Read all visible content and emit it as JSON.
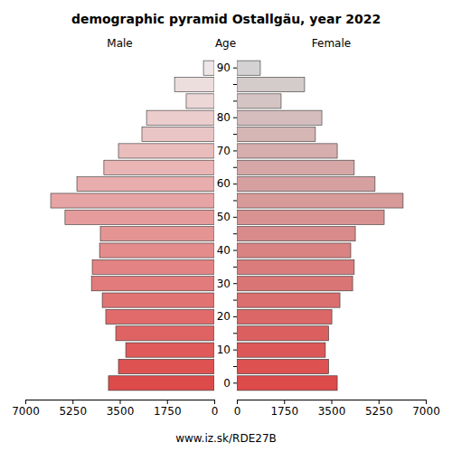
{
  "chart_data": {
    "type": "pyramid",
    "orientation": "horizontal",
    "title": "demographic pyramid Ostallgäu, year 2022",
    "y_label": "Age",
    "caption": "www.iz.sk/RDE27B",
    "categories": [
      "0",
      null,
      "10",
      null,
      "20",
      null,
      "30",
      null,
      "40",
      null,
      "50",
      null,
      "60",
      null,
      "70",
      null,
      "80",
      null,
      null,
      "90"
    ],
    "xlim": [
      0,
      7000
    ],
    "xticks": [
      0,
      1750,
      3500,
      5250,
      7000
    ],
    "series": [
      {
        "name": "Male",
        "values": [
          3920,
          3550,
          3280,
          3650,
          4020,
          4150,
          4550,
          4520,
          4250,
          4220,
          5530,
          6060,
          5090,
          4090,
          3550,
          2680,
          2510,
          1040,
          1470,
          400
        ],
        "colors": [
          "#dd4a4a",
          "#de5252",
          "#df5a5a",
          "#e06363",
          "#e16b6b",
          "#e17373",
          "#e27b7b",
          "#e38383",
          "#e48c8c",
          "#e59494",
          "#e69c9c",
          "#e7a4a4",
          "#e8adad",
          "#e9b5b5",
          "#eabdbd",
          "#eac5c5",
          "#ebcdcd",
          "#ecd6d6",
          "#eddede",
          "#eee6e6"
        ]
      },
      {
        "name": "Female",
        "values": [
          3720,
          3400,
          3280,
          3400,
          3520,
          3820,
          4290,
          4350,
          4220,
          4390,
          5460,
          6160,
          5120,
          4350,
          3720,
          2910,
          3150,
          1640,
          2510,
          870
        ],
        "colors": [
          "#dd4a4a",
          "#dd5151",
          "#dc5858",
          "#dc5f5f",
          "#db6767",
          "#db6e6e",
          "#da7575",
          "#da7c7c",
          "#d98383",
          "#d98a8a",
          "#d89292",
          "#d89999",
          "#d7a0a0",
          "#d7a7a7",
          "#d6aeae",
          "#d6b5b5",
          "#d5bdbd",
          "#d5c4c4",
          "#d4cbcb",
          "#d4d2d2"
        ]
      }
    ]
  }
}
